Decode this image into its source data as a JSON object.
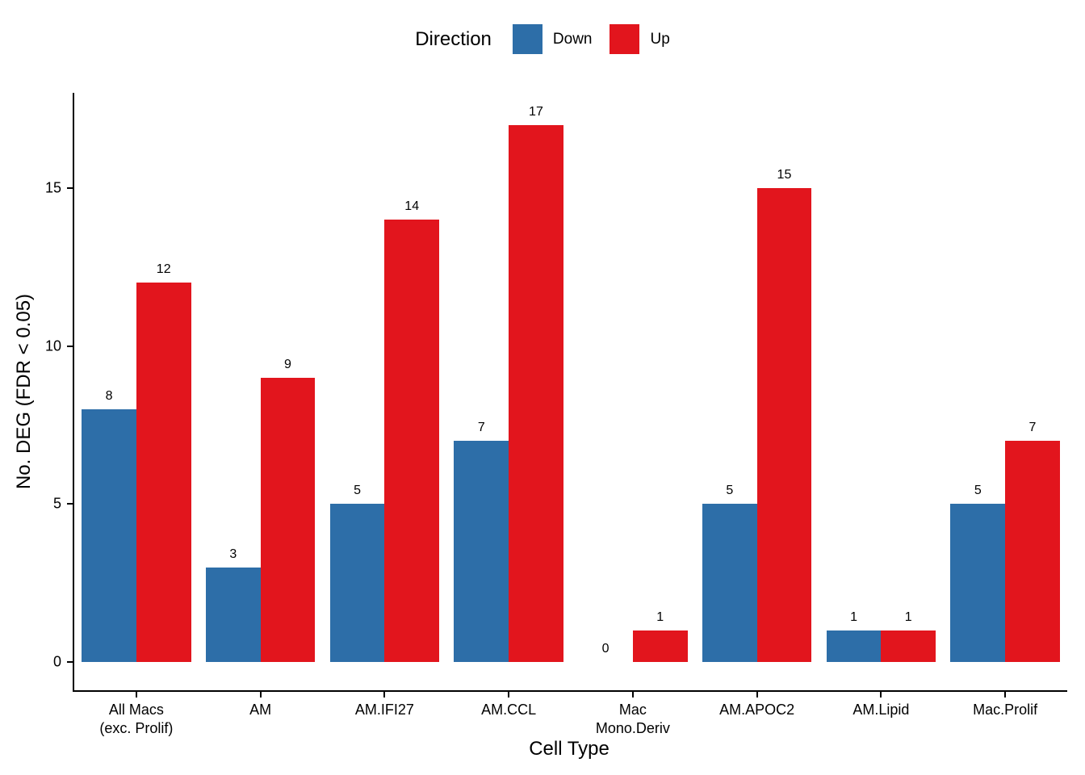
{
  "legend": {
    "title": "Direction",
    "items": [
      {
        "label": "Down",
        "color": "#2d6ea8"
      },
      {
        "label": "Up",
        "color": "#e2151d"
      }
    ]
  },
  "chart_data": {
    "type": "bar",
    "title": "",
    "xlabel": "Cell Type",
    "ylabel": "No. DEG (FDR < 0.05)",
    "categories": [
      "All Macs\n(exc. Prolif)",
      "AM",
      "AM.IFI27",
      "AM.CCL",
      "Mac\nMono.Deriv",
      "AM.APOC2",
      "AM.Lipid",
      "Mac.Prolif"
    ],
    "series": [
      {
        "name": "Down",
        "color": "#2d6ea8",
        "values": [
          8,
          3,
          5,
          7,
          0,
          5,
          1,
          5
        ]
      },
      {
        "name": "Up",
        "color": "#e2151d",
        "values": [
          12,
          9,
          14,
          17,
          1,
          15,
          1,
          7
        ]
      }
    ],
    "ylim": [
      0,
      17.5
    ],
    "yticks": [
      0,
      5,
      10,
      15
    ],
    "grid": false,
    "legend_position": "top",
    "value_labels": true,
    "bar_mode": "grouped"
  }
}
